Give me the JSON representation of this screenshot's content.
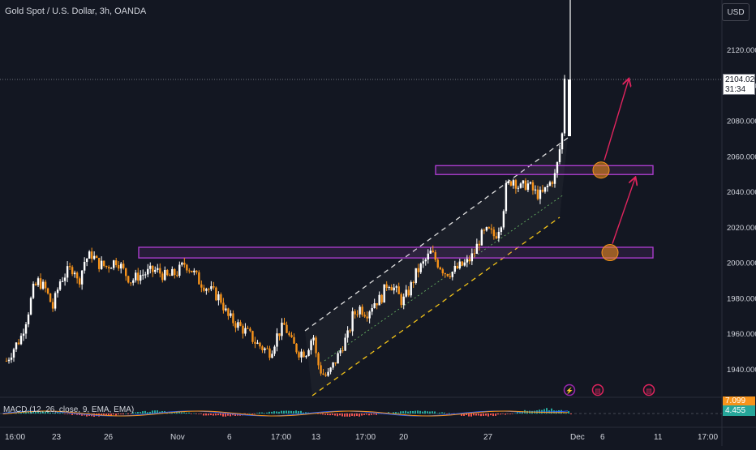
{
  "header": {
    "title": "Gold Spot / U.S. Dollar, 3h, OANDA"
  },
  "currency_button": {
    "label": "USD"
  },
  "last_price": {
    "value": "2104.020",
    "countdown": "31:34"
  },
  "macd": {
    "label": "MACD (12, 26, close, 9, EMA, EMA)",
    "signal_value": "7.099",
    "macd_value": "4.455"
  },
  "colors": {
    "background": "#131722",
    "up": "#ffffff",
    "down": "#f7931a",
    "zone": "#b43fd9",
    "arrow": "#e0245e",
    "circle": "#f7931a"
  },
  "event_icons": [
    "lightning-icon",
    "us-flag-icon",
    "us-flag-icon"
  ],
  "chart_data": {
    "type": "candlestick",
    "title": "Gold Spot / U.S. Dollar, 3h, OANDA",
    "y_ticks": [
      "2120.000",
      "2100.000",
      "2080.000",
      "2060.000",
      "2040.000",
      "2020.000",
      "2000.000",
      "1980.000",
      "1960.000",
      "1940.000"
    ],
    "y_tick_values": [
      2120,
      2100,
      2080,
      2060,
      2040,
      2020,
      2000,
      1980,
      1960,
      1940
    ],
    "ylim": [
      1930,
      2145
    ],
    "x_ticks": [
      "16:00",
      "23",
      "26",
      "Nov",
      "6",
      "17:00",
      "13",
      "17:00",
      "20",
      "27",
      "Dec",
      "6",
      "11",
      "17:00"
    ],
    "path": [
      [
        0,
        1945
      ],
      [
        0.02,
        1952
      ],
      [
        0.04,
        1958
      ],
      [
        0.06,
        1972
      ],
      [
        0.075,
        1985
      ],
      [
        0.09,
        1990
      ],
      [
        0.11,
        1985
      ],
      [
        0.13,
        1975
      ],
      [
        0.15,
        1990
      ],
      [
        0.17,
        1995
      ],
      [
        0.19,
        1998
      ],
      [
        0.2,
        1988
      ],
      [
        0.22,
        2002
      ],
      [
        0.24,
        2005
      ],
      [
        0.255,
        2000
      ],
      [
        0.28,
        1998
      ],
      [
        0.31,
        2002
      ],
      [
        0.33,
        1995
      ],
      [
        0.35,
        1990
      ],
      [
        0.37,
        1993
      ],
      [
        0.4,
        1995
      ],
      [
        0.42,
        1996
      ],
      [
        0.45,
        1992
      ],
      [
        0.48,
        1995
      ],
      [
        0.5,
        2000
      ],
      [
        0.52,
        1996
      ],
      [
        0.54,
        1990
      ],
      [
        0.57,
        1985
      ],
      [
        0.6,
        1980
      ],
      [
        0.62,
        1970
      ],
      [
        0.65,
        1965
      ],
      [
        0.68,
        1960
      ],
      [
        0.7,
        1955
      ],
      [
        0.72,
        1952
      ],
      [
        0.74,
        1950
      ],
      [
        0.76,
        1960
      ],
      [
        0.78,
        1965
      ],
      [
        0.8,
        1955
      ],
      [
        0.82,
        1950
      ],
      [
        0.84,
        1950
      ],
      [
        0.86,
        1960
      ],
      [
        0.87,
        1945
      ],
      [
        0.885,
        1938
      ],
      [
        0.9,
        1936
      ],
      [
        0.915,
        1942
      ],
      [
        0.93,
        1948
      ],
      [
        0.945,
        1955
      ],
      [
        0.96,
        1960
      ],
      [
        0.97,
        1970
      ],
      [
        0.99,
        1975
      ],
      [
        1.01,
        1972
      ],
      [
        1.03,
        1978
      ],
      [
        1.05,
        1980
      ],
      [
        1.07,
        1990
      ],
      [
        1.09,
        1985
      ],
      [
        1.11,
        1978
      ],
      [
        1.13,
        1985
      ],
      [
        1.15,
        1995
      ],
      [
        1.17,
        2000
      ],
      [
        1.19,
        2006
      ],
      [
        1.21,
        2000
      ],
      [
        1.23,
        1995
      ],
      [
        1.25,
        1995
      ],
      [
        1.27,
        1998
      ],
      [
        1.29,
        2000
      ],
      [
        1.31,
        2005
      ],
      [
        1.33,
        2015
      ],
      [
        1.35,
        2018
      ],
      [
        1.37,
        2015
      ],
      [
        1.39,
        2025
      ],
      [
        1.4,
        2042
      ],
      [
        1.42,
        2048
      ],
      [
        1.44,
        2042
      ],
      [
        1.46,
        2045
      ],
      [
        1.48,
        2040
      ],
      [
        1.5,
        2038
      ],
      [
        1.52,
        2044
      ],
      [
        1.54,
        2050
      ],
      [
        1.56,
        2075
      ],
      [
        1.565,
        2104
      ]
    ],
    "path_note": "x in fractional week index from Oct 20 to Dec 4; y in USD",
    "zones": [
      {
        "from": 2050,
        "to": 2055
      },
      {
        "from": 2003,
        "to": 2009
      }
    ]
  }
}
